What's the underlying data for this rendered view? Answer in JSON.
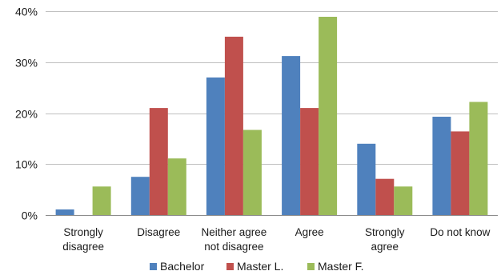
{
  "chart_data": {
    "type": "bar",
    "categories": [
      [
        "Strongly",
        "disagree"
      ],
      [
        "Disagree"
      ],
      [
        "Neither agree",
        "not disagree"
      ],
      [
        "Agree"
      ],
      [
        "Strongly",
        "agree"
      ],
      [
        "Do not know"
      ]
    ],
    "series": [
      {
        "name": "Bachelor",
        "color": "#4f81bd",
        "values": [
          1.1,
          7.5,
          27.0,
          31.2,
          14.0,
          19.3
        ]
      },
      {
        "name": "Master L.",
        "color": "#c0504d",
        "values": [
          0.0,
          21.0,
          35.0,
          21.0,
          7.1,
          16.4
        ]
      },
      {
        "name": "Master F.",
        "color": "#9bbb59",
        "values": [
          5.6,
          11.1,
          16.7,
          38.9,
          5.6,
          22.2
        ]
      }
    ],
    "ylim": [
      0,
      40
    ],
    "yticks": [
      0,
      10,
      20,
      30,
      40
    ],
    "ytick_labels": [
      "0%",
      "10%",
      "20%",
      "30%",
      "40%"
    ],
    "grid": true,
    "legend_position": "bottom"
  }
}
